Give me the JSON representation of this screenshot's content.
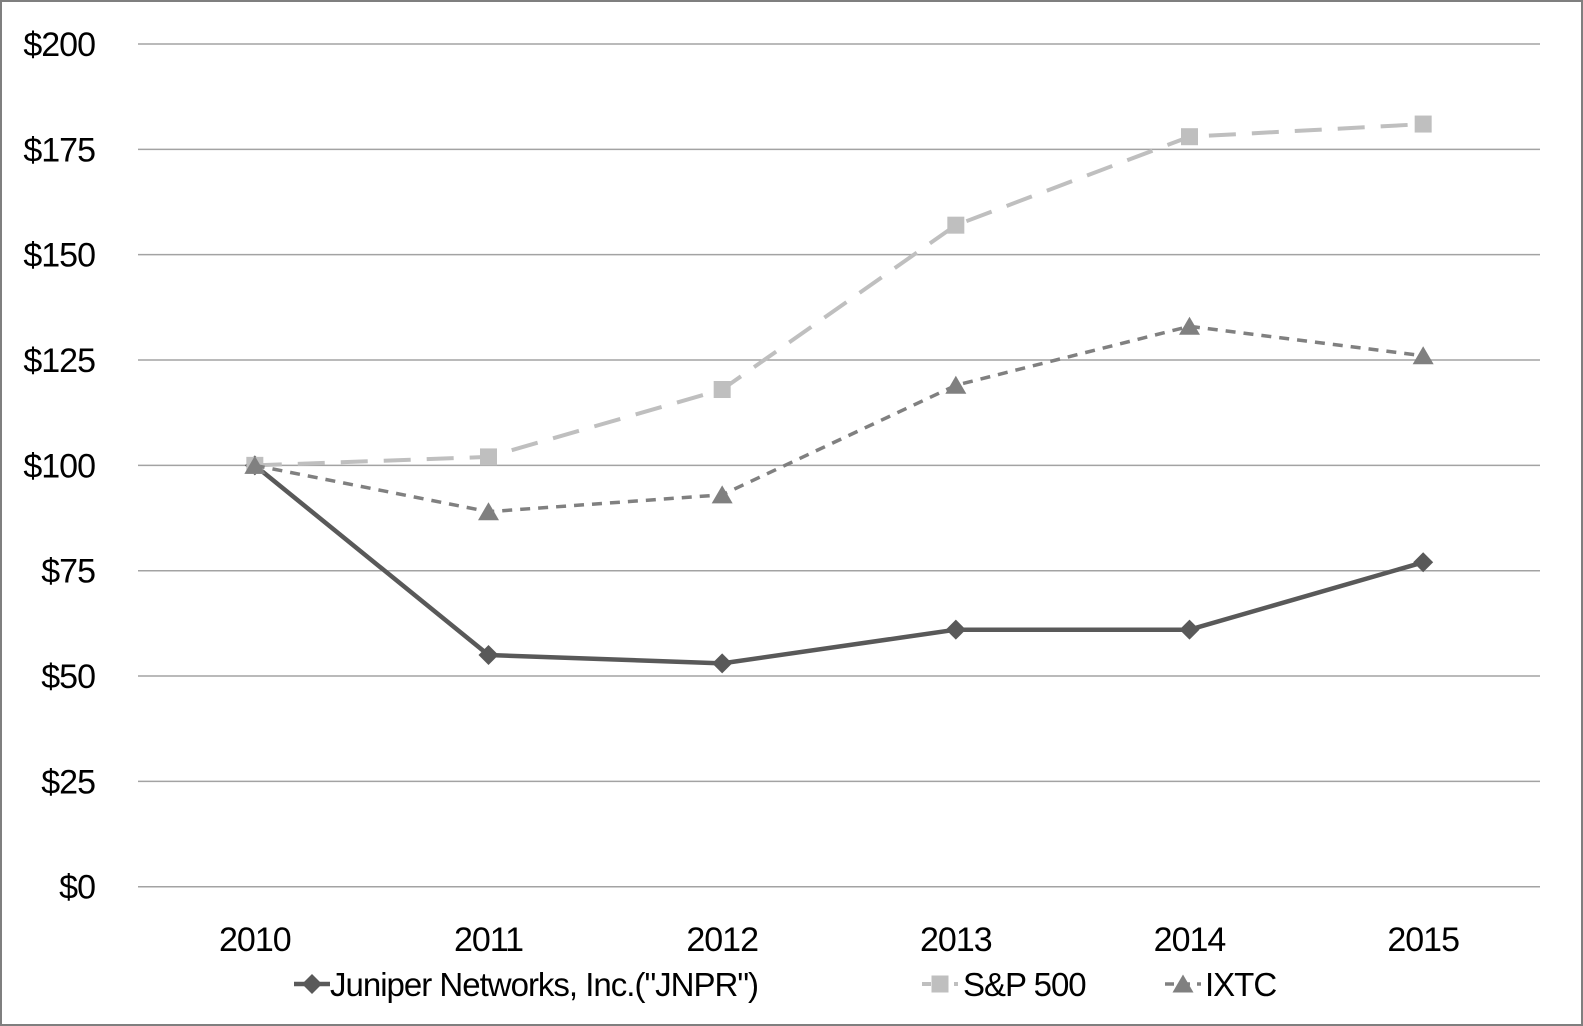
{
  "figure": {
    "background": "#ffffff",
    "border_color": "#7f7f7f",
    "title": ""
  },
  "chart_data": {
    "type": "line",
    "title": "",
    "xlabel": "",
    "ylabel": "",
    "categories": [
      "2010",
      "2011",
      "2012",
      "2013",
      "2014",
      "2015"
    ],
    "series": [
      {
        "name": "Juniper Networks, Inc.(\"JNPR\")",
        "values": [
          100,
          55,
          53,
          61,
          61,
          77
        ],
        "color": "#595959",
        "marker": "diamond",
        "line_style": "solid",
        "line_width": 4.5
      },
      {
        "name": "S&P 500",
        "values": [
          100,
          102,
          118,
          157,
          178,
          181
        ],
        "color": "#bfbfbf",
        "marker": "square",
        "line_style": "long-dash",
        "line_width": 4
      },
      {
        "name": "IXTC",
        "values": [
          100,
          89,
          93,
          119,
          133,
          126
        ],
        "color": "#808080",
        "marker": "triangle",
        "line_style": "short-dash",
        "line_width": 3.5
      }
    ],
    "y_axis": {
      "min": 0,
      "max": 200,
      "step": 25,
      "tick_labels": [
        "$0",
        "$25",
        "$50",
        "$75",
        "$100",
        "$125",
        "$150",
        "$175",
        "$200"
      ],
      "grid": true,
      "grid_color": "#a3a3a3",
      "label_color": "#000000"
    },
    "x_axis": {
      "labels": [
        "2010",
        "2011",
        "2012",
        "2013",
        "2014",
        "2015"
      ],
      "label_color": "#000000"
    },
    "legend": {
      "position": "bottom",
      "entries": [
        "Juniper Networks, Inc.(\"JNPR\")",
        "S&P 500",
        "IXTC"
      ]
    }
  }
}
